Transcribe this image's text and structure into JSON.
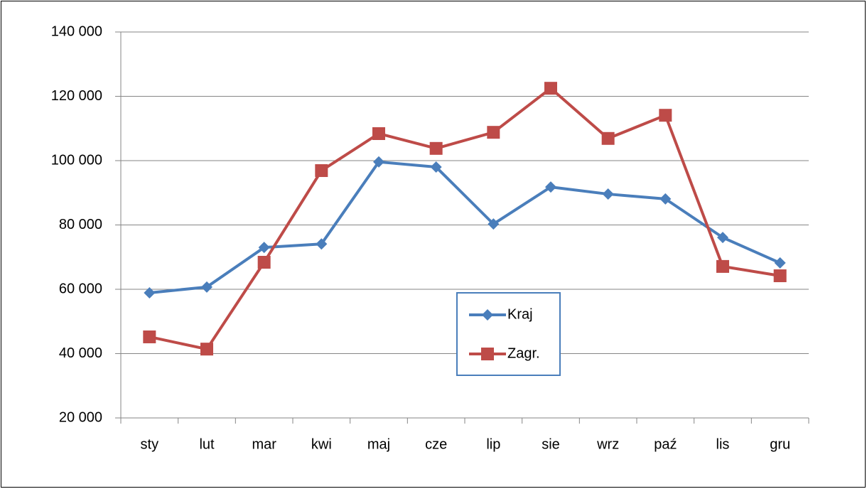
{
  "chart_data": {
    "type": "line",
    "categories": [
      "sty",
      "lut",
      "mar",
      "kwi",
      "maj",
      "cze",
      "lip",
      "sie",
      "wrz",
      "paź",
      "lis",
      "gru"
    ],
    "series": [
      {
        "name": "Kraj",
        "color": "#4a7ebb",
        "marker": "diamond",
        "values": [
          58900,
          60700,
          73000,
          74100,
          99600,
          98000,
          80300,
          91800,
          89600,
          88100,
          76100,
          68200
        ]
      },
      {
        "name": "Zagr.",
        "color": "#be4b48",
        "marker": "square",
        "values": [
          45200,
          41400,
          68400,
          96900,
          108400,
          103800,
          108800,
          122500,
          106900,
          114100,
          67100,
          64200
        ]
      }
    ],
    "ylim": [
      20000,
      140000
    ],
    "yticks": [
      {
        "value": 20000,
        "label": "20 000"
      },
      {
        "value": 40000,
        "label": "40 000"
      },
      {
        "value": 60000,
        "label": "60 000"
      },
      {
        "value": 80000,
        "label": "80 000"
      },
      {
        "value": 100000,
        "label": "100 000"
      },
      {
        "value": 120000,
        "label": "120 000"
      },
      {
        "value": 140000,
        "label": "140 000"
      }
    ],
    "grid": true,
    "legend": "center"
  }
}
